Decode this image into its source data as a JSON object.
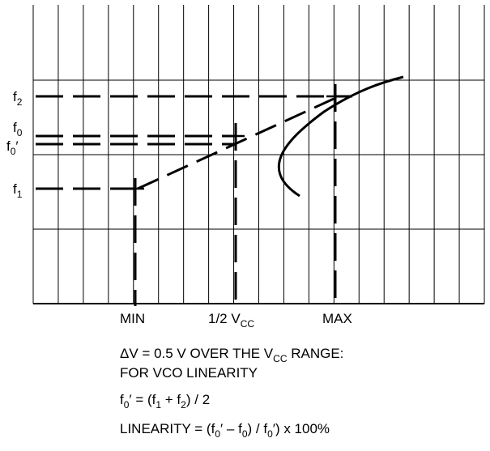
{
  "y_labels": {
    "f2": {
      "base": "f",
      "sub": "2"
    },
    "f0": {
      "base": "f",
      "sub": "0"
    },
    "f0_prime": {
      "base": "f",
      "sub": "0",
      "prime": "′"
    },
    "f1": {
      "base": "f",
      "sub": "1"
    }
  },
  "x_labels": {
    "min": "MIN",
    "half_vcc": {
      "base": "1/2 V",
      "sub": "CC"
    },
    "max": "MAX"
  },
  "notes": {
    "line1": {
      "pre": "ΔV = 0.5 V OVER THE V",
      "sub": "CC",
      "post": " RANGE:"
    },
    "line2": "FOR VCO LINEARITY",
    "line3": {
      "a": "f",
      "a_sub": "0",
      "b": "′ = (f",
      "b_sub": "1",
      "c": " + f",
      "c_sub": "2",
      "d": ") / 2"
    },
    "line4": {
      "a": "LINEARITY = (f",
      "a_sub": "0",
      "b": "′ – f",
      "b_sub": "0",
      "c": ") / f",
      "c_sub": "0",
      "d": "′) x 100%"
    }
  }
}
